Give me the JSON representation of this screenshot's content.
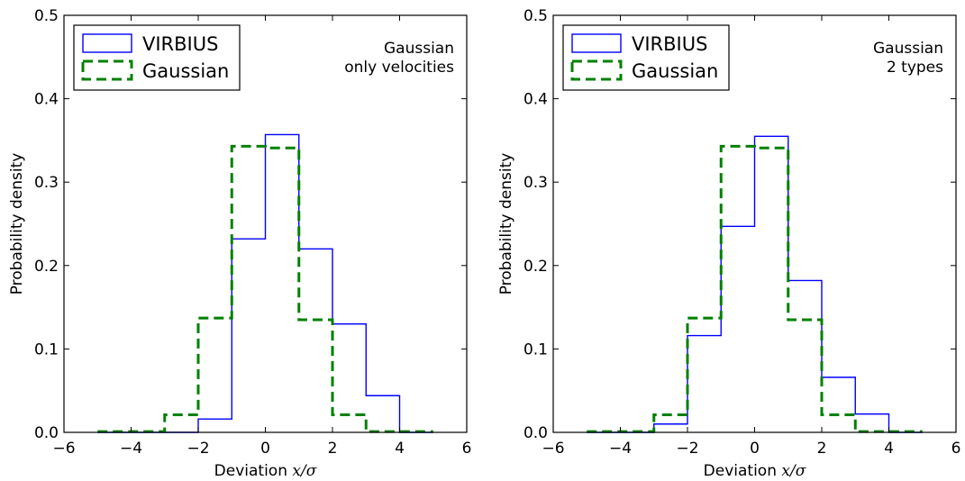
{
  "chart_data": [
    {
      "type": "step",
      "xlabel": "Deviation x/σ",
      "ylabel": "Probability density",
      "xlim": [
        -6,
        6
      ],
      "ylim": [
        0,
        0.5
      ],
      "xticks": [
        -6,
        -4,
        -2,
        0,
        2,
        4,
        6
      ],
      "yticks": [
        0.0,
        0.1,
        0.2,
        0.3,
        0.4,
        0.5
      ],
      "xtick_labels": [
        "−6",
        "−4",
        "−2",
        "0",
        "2",
        "4",
        "6"
      ],
      "ytick_labels": [
        "0.0",
        "0.1",
        "0.2",
        "0.3",
        "0.4",
        "0.5"
      ],
      "annotation": [
        "Gaussian",
        "only velocities"
      ],
      "legend_placement": "top-left",
      "bin_edges": [
        -5,
        -4,
        -3,
        -2,
        -1,
        0,
        1,
        2,
        3,
        4,
        5
      ],
      "series": [
        {
          "name": "VIRBIUS",
          "color": "#0000ff",
          "style": "solid",
          "values": [
            0.0,
            0.0,
            0.0,
            0.016,
            0.232,
            0.357,
            0.22,
            0.13,
            0.044,
            0.0
          ]
        },
        {
          "name": "Gaussian",
          "color": "#008000",
          "style": "dashed",
          "values": [
            0.001,
            0.001,
            0.021,
            0.137,
            0.343,
            0.341,
            0.135,
            0.021,
            0.001,
            0.001
          ]
        }
      ]
    },
    {
      "type": "step",
      "xlabel": "Deviation x/σ",
      "ylabel": "Probability density",
      "xlim": [
        -6,
        6
      ],
      "ylim": [
        0,
        0.5
      ],
      "xticks": [
        -6,
        -4,
        -2,
        0,
        2,
        4,
        6
      ],
      "yticks": [
        0.0,
        0.1,
        0.2,
        0.3,
        0.4,
        0.5
      ],
      "xtick_labels": [
        "−6",
        "−4",
        "−2",
        "0",
        "2",
        "4",
        "6"
      ],
      "ytick_labels": [
        "0.0",
        "0.1",
        "0.2",
        "0.3",
        "0.4",
        "0.5"
      ],
      "annotation": [
        "Gaussian",
        "2 types"
      ],
      "legend_placement": "top-left",
      "bin_edges": [
        -5,
        -4,
        -3,
        -2,
        -1,
        0,
        1,
        2,
        3,
        4,
        5
      ],
      "series": [
        {
          "name": "VIRBIUS",
          "color": "#0000ff",
          "style": "solid",
          "values": [
            0.0,
            0.0,
            0.01,
            0.116,
            0.247,
            0.355,
            0.182,
            0.066,
            0.022,
            0.0
          ]
        },
        {
          "name": "Gaussian",
          "color": "#008000",
          "style": "dashed",
          "values": [
            0.001,
            0.001,
            0.021,
            0.137,
            0.343,
            0.341,
            0.135,
            0.021,
            0.001,
            0.001
          ]
        }
      ]
    }
  ]
}
